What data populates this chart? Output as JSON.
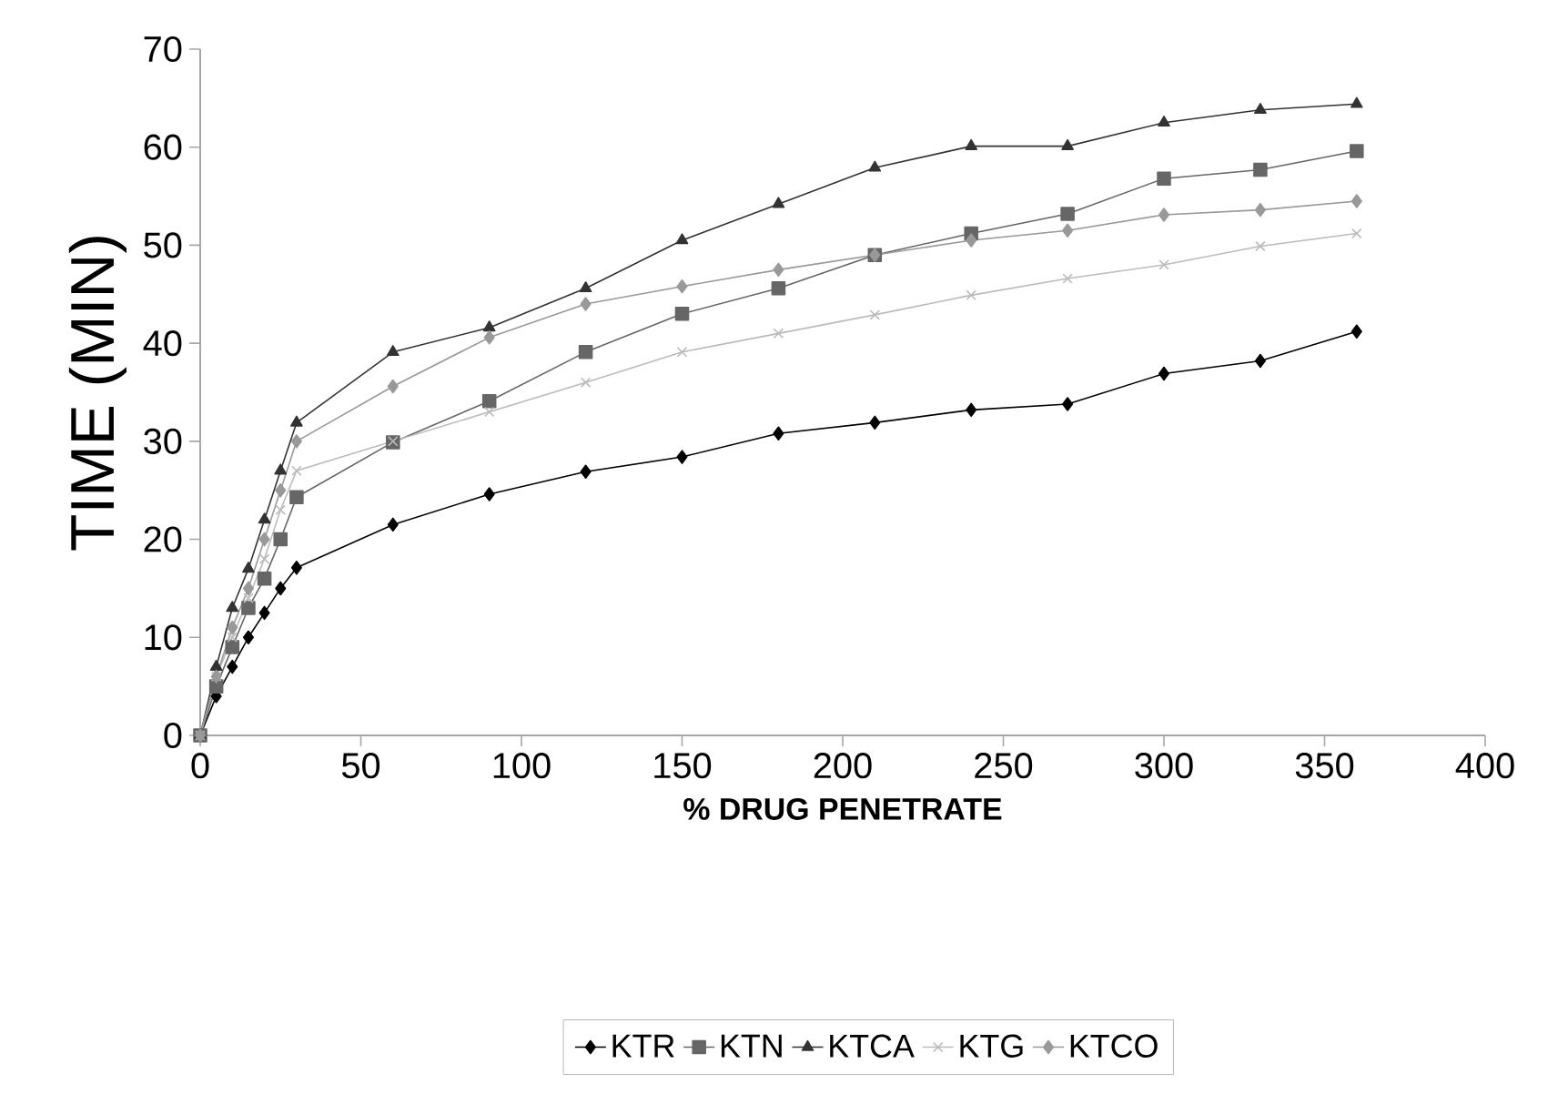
{
  "chart_data": {
    "type": "line",
    "xlabel": "% DRUG PENETRATE",
    "ylabel": "TIME (MIN)",
    "x": [
      0,
      5,
      10,
      15,
      20,
      25,
      30,
      60,
      90,
      120,
      150,
      180,
      210,
      240,
      270,
      300,
      330,
      360
    ],
    "xlim": [
      0,
      400
    ],
    "xticks": [
      0,
      50,
      100,
      150,
      200,
      250,
      300,
      350,
      400
    ],
    "ylim": [
      0,
      70
    ],
    "yticks": [
      0,
      10,
      20,
      30,
      40,
      50,
      60,
      70
    ],
    "grid": false,
    "legend": "bottom",
    "line_style": "solid",
    "series": [
      {
        "name": "KTR",
        "color": "#000000",
        "marker": "diamond",
        "values": [
          0,
          4,
          7,
          10,
          12.5,
          15,
          17.1,
          21.5,
          24.6,
          26.9,
          28.4,
          30.8,
          31.9,
          33.2,
          33.8,
          36.9,
          38.2,
          41.2
        ]
      },
      {
        "name": "KTN",
        "color": "#666666",
        "marker": "square",
        "values": [
          0,
          5,
          9,
          13,
          16,
          20,
          24.3,
          29.9,
          34.1,
          39.1,
          43,
          45.6,
          49,
          51.2,
          53.2,
          56.8,
          57.7,
          59.6
        ]
      },
      {
        "name": "KTCA",
        "color": "#333333",
        "marker": "triangle",
        "values": [
          0,
          7,
          13,
          17,
          22,
          27,
          31.9,
          39.1,
          41.6,
          45.6,
          50.5,
          54.2,
          57.9,
          60.1,
          60.1,
          62.5,
          63.8,
          64.4
        ]
      },
      {
        "name": "KTG",
        "color": "#bbbbbb",
        "marker": "cross",
        "values": [
          0,
          6,
          10,
          14,
          18,
          23,
          27,
          30,
          33,
          36,
          39.1,
          41,
          42.9,
          44.9,
          46.6,
          48,
          49.9,
          51.2
        ]
      },
      {
        "name": "KTCO",
        "color": "#999999",
        "marker": "diamond",
        "values": [
          0,
          6,
          11,
          15,
          20,
          25,
          30,
          35.6,
          40.6,
          44,
          45.8,
          47.5,
          49,
          50.5,
          51.5,
          53.1,
          53.6,
          54.5
        ]
      }
    ]
  }
}
